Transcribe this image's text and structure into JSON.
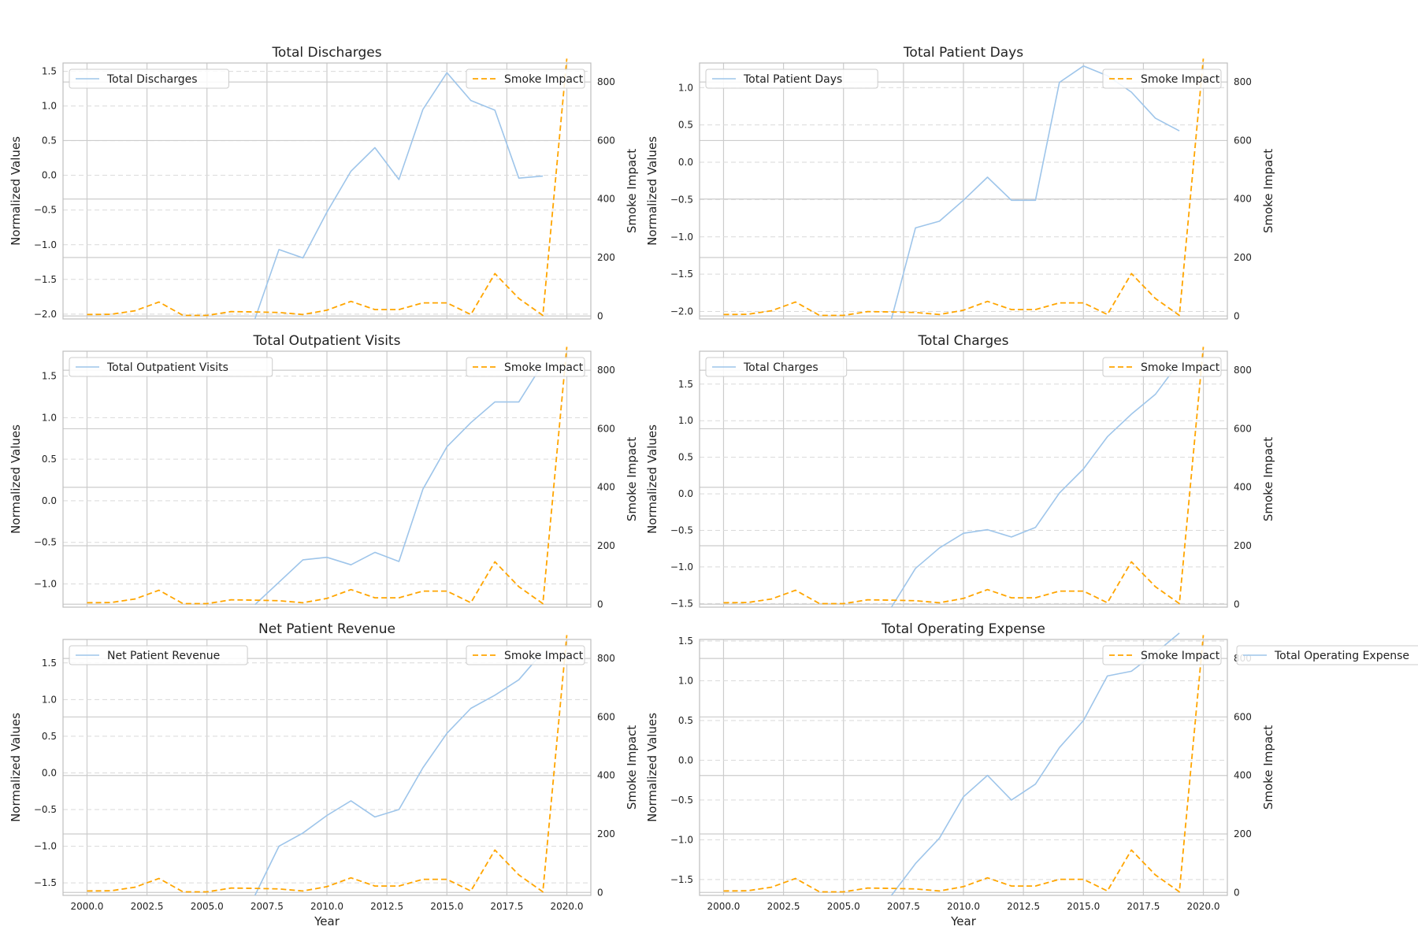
{
  "figure": {
    "xlabel": "Year",
    "left_ylabel": "Normalized Values",
    "right_ylabel": "Smoke Impact"
  },
  "colors": {
    "primary": "#9ec5ea",
    "smoke": "#ffa500",
    "grid": "#cccccc",
    "grid_dash": "#d9d9d9",
    "axis": "#bfbfbf",
    "text": "#222222"
  },
  "chart_data": [
    {
      "type": "line",
      "title": "Total Discharges",
      "xlabel": "",
      "ylabel": "Normalized Values",
      "y2label": "Smoke Impact",
      "xlim": [
        1999,
        2021
      ],
      "ylim": [
        -2.07,
        1.62
      ],
      "y2lim": [
        -10,
        865
      ],
      "xticks": [
        2000,
        2002.5,
        2005,
        2007.5,
        2010,
        2012.5,
        2015,
        2017.5,
        2020
      ],
      "xtick_labels": [
        "2000.0",
        "2002.5",
        "2005.0",
        "2007.5",
        "2010.0",
        "2012.5",
        "2015.0",
        "2017.5",
        "2020.0"
      ],
      "yticks": [
        -2.0,
        -1.5,
        -1.0,
        -0.5,
        0.0,
        0.5,
        1.0,
        1.5
      ],
      "ytick_labels": [
        "−2.0",
        "−1.5",
        "−1.0",
        "−0.5",
        "0.0",
        "0.5",
        "1.0",
        "1.5"
      ],
      "y2ticks": [
        0,
        200,
        400,
        600,
        800
      ],
      "y2tick_labels": [
        "0",
        "200",
        "400",
        "600",
        "800"
      ],
      "legend_main": "upper left",
      "legend_smoke": "upper right",
      "series": [
        {
          "name": "Total Discharges",
          "axis": "left",
          "x": [
            2007,
            2008,
            2009,
            2010,
            2011,
            2012,
            2013,
            2014,
            2015,
            2016,
            2017,
            2018,
            2019
          ],
          "y": [
            -2.07,
            -1.07,
            -1.19,
            -0.53,
            0.06,
            0.4,
            -0.06,
            0.95,
            1.48,
            1.08,
            0.94,
            -0.04,
            -0.01
          ]
        },
        {
          "name": "Smoke Impact",
          "axis": "right",
          "dashed": true,
          "x": [
            2000,
            2001,
            2002,
            2003,
            2004,
            2005,
            2006,
            2007,
            2008,
            2009,
            2010,
            2011,
            2012,
            2013,
            2014,
            2015,
            2016,
            2017,
            2018,
            2019,
            2020
          ],
          "y": [
            5,
            6,
            18,
            48,
            2,
            2,
            15,
            14,
            12,
            5,
            20,
            50,
            22,
            22,
            45,
            45,
            5,
            145,
            60,
            2,
            880
          ]
        }
      ]
    },
    {
      "type": "line",
      "title": "Total Patient Days",
      "xlabel": "",
      "ylabel": "Normalized Values",
      "y2label": "Smoke Impact",
      "xlim": [
        1999,
        2021
      ],
      "ylim": [
        -2.1,
        1.33
      ],
      "y2lim": [
        -10,
        865
      ],
      "xticks": [
        2000,
        2002.5,
        2005,
        2007.5,
        2010,
        2012.5,
        2015,
        2017.5,
        2020
      ],
      "xtick_labels": [
        "2000.0",
        "2002.5",
        "2005.0",
        "2007.5",
        "2010.0",
        "2012.5",
        "2015.0",
        "2017.5",
        "2020.0"
      ],
      "yticks": [
        -2.0,
        -1.5,
        -1.0,
        -0.5,
        0.0,
        0.5,
        1.0
      ],
      "ytick_labels": [
        "−2.0",
        "−1.5",
        "−1.0",
        "−0.5",
        "0.0",
        "0.5",
        "1.0"
      ],
      "y2ticks": [
        0,
        200,
        400,
        600,
        800
      ],
      "y2tick_labels": [
        "0",
        "200",
        "400",
        "600",
        "800"
      ],
      "legend_main": "upper left",
      "legend_smoke": "upper right",
      "series": [
        {
          "name": "Total Patient Days",
          "axis": "left",
          "x": [
            2007,
            2008,
            2009,
            2010,
            2011,
            2012,
            2013,
            2014,
            2015,
            2016,
            2017,
            2018,
            2019
          ],
          "y": [
            -2.1,
            -0.88,
            -0.79,
            -0.51,
            -0.2,
            -0.51,
            -0.51,
            1.07,
            1.29,
            1.16,
            0.94,
            0.59,
            0.42
          ]
        },
        {
          "name": "Smoke Impact",
          "axis": "right",
          "dashed": true,
          "x": [
            2000,
            2001,
            2002,
            2003,
            2004,
            2005,
            2006,
            2007,
            2008,
            2009,
            2010,
            2011,
            2012,
            2013,
            2014,
            2015,
            2016,
            2017,
            2018,
            2019,
            2020
          ],
          "y": [
            5,
            6,
            18,
            48,
            2,
            2,
            15,
            14,
            12,
            5,
            20,
            50,
            22,
            22,
            45,
            45,
            5,
            145,
            60,
            2,
            880
          ]
        }
      ]
    },
    {
      "type": "line",
      "title": "Total Outpatient Visits",
      "xlabel": "",
      "ylabel": "Normalized Values",
      "y2label": "Smoke Impact",
      "xlim": [
        1999,
        2021
      ],
      "ylim": [
        -1.28,
        1.8
      ],
      "y2lim": [
        -10,
        865
      ],
      "xticks": [
        2000,
        2002.5,
        2005,
        2007.5,
        2010,
        2012.5,
        2015,
        2017.5,
        2020
      ],
      "xtick_labels": [
        "2000.0",
        "2002.5",
        "2005.0",
        "2007.5",
        "2010.0",
        "2012.5",
        "2015.0",
        "2017.5",
        "2020.0"
      ],
      "yticks": [
        -1.0,
        -0.5,
        0.0,
        0.5,
        1.0,
        1.5
      ],
      "ytick_labels": [
        "−1.0",
        "−0.5",
        "0.0",
        "0.5",
        "1.0",
        "1.5"
      ],
      "y2ticks": [
        0,
        200,
        400,
        600,
        800
      ],
      "y2tick_labels": [
        "0",
        "200",
        "400",
        "600",
        "800"
      ],
      "legend_main": "upper left",
      "legend_smoke": "upper right",
      "series": [
        {
          "name": "Total Outpatient Visits",
          "axis": "left",
          "x": [
            2007,
            2008,
            2009,
            2010,
            2011,
            2012,
            2013,
            2014,
            2015,
            2016,
            2017,
            2018,
            2019
          ],
          "y": [
            -1.25,
            -0.98,
            -0.71,
            -0.68,
            -0.77,
            -0.62,
            -0.73,
            0.14,
            0.65,
            0.94,
            1.19,
            1.19,
            1.65
          ]
        },
        {
          "name": "Smoke Impact",
          "axis": "right",
          "dashed": true,
          "x": [
            2000,
            2001,
            2002,
            2003,
            2004,
            2005,
            2006,
            2007,
            2008,
            2009,
            2010,
            2011,
            2012,
            2013,
            2014,
            2015,
            2016,
            2017,
            2018,
            2019,
            2020
          ],
          "y": [
            5,
            6,
            18,
            48,
            2,
            2,
            15,
            14,
            12,
            5,
            20,
            50,
            22,
            22,
            45,
            45,
            5,
            145,
            60,
            2,
            880
          ]
        }
      ]
    },
    {
      "type": "line",
      "title": "Total Charges",
      "xlabel": "",
      "ylabel": "Normalized Values",
      "y2label": "Smoke Impact",
      "xlim": [
        1999,
        2021
      ],
      "ylim": [
        -1.55,
        1.95
      ],
      "y2lim": [
        -10,
        865
      ],
      "xticks": [
        2000,
        2002.5,
        2005,
        2007.5,
        2010,
        2012.5,
        2015,
        2017.5,
        2020
      ],
      "xtick_labels": [
        "2000.0",
        "2002.5",
        "2005.0",
        "2007.5",
        "2010.0",
        "2012.5",
        "2015.0",
        "2017.5",
        "2020.0"
      ],
      "yticks": [
        -1.5,
        -1.0,
        -0.5,
        0.0,
        0.5,
        1.0,
        1.5
      ],
      "ytick_labels": [
        "−1.5",
        "−1.0",
        "−0.5",
        "0.0",
        "0.5",
        "1.0",
        "1.5"
      ],
      "y2ticks": [
        0,
        200,
        400,
        600,
        800
      ],
      "y2tick_labels": [
        "0",
        "200",
        "400",
        "600",
        "800"
      ],
      "legend_main": "upper left",
      "legend_smoke": "upper right",
      "series": [
        {
          "name": "Total Charges",
          "axis": "left",
          "x": [
            2007,
            2008,
            2009,
            2010,
            2011,
            2012,
            2013,
            2014,
            2015,
            2016,
            2017,
            2018,
            2019
          ],
          "y": [
            -1.55,
            -1.02,
            -0.74,
            -0.54,
            -0.49,
            -0.59,
            -0.46,
            0.01,
            0.34,
            0.78,
            1.09,
            1.36,
            1.8
          ]
        },
        {
          "name": "Smoke Impact",
          "axis": "right",
          "dashed": true,
          "x": [
            2000,
            2001,
            2002,
            2003,
            2004,
            2005,
            2006,
            2007,
            2008,
            2009,
            2010,
            2011,
            2012,
            2013,
            2014,
            2015,
            2016,
            2017,
            2018,
            2019,
            2020
          ],
          "y": [
            5,
            6,
            18,
            48,
            2,
            2,
            15,
            14,
            12,
            5,
            20,
            50,
            22,
            22,
            45,
            45,
            5,
            145,
            60,
            2,
            880
          ]
        }
      ]
    },
    {
      "type": "line",
      "title": "Net Patient Revenue",
      "xlabel": "Year",
      "ylabel": "Normalized Values",
      "y2label": "Smoke Impact",
      "xlim": [
        1999,
        2021
      ],
      "ylim": [
        -1.67,
        1.82
      ],
      "y2lim": [
        -10,
        865
      ],
      "xticks": [
        2000,
        2002.5,
        2005,
        2007.5,
        2010,
        2012.5,
        2015,
        2017.5,
        2020
      ],
      "xtick_labels": [
        "2000.0",
        "2002.5",
        "2005.0",
        "2007.5",
        "2010.0",
        "2012.5",
        "2015.0",
        "2017.5",
        "2020.0"
      ],
      "yticks": [
        -1.5,
        -1.0,
        -0.5,
        0.0,
        0.5,
        1.0,
        1.5
      ],
      "ytick_labels": [
        "−1.5",
        "−1.0",
        "−0.5",
        "0.0",
        "0.5",
        "1.0",
        "1.5"
      ],
      "y2ticks": [
        0,
        200,
        400,
        600,
        800
      ],
      "y2tick_labels": [
        "0",
        "200",
        "400",
        "600",
        "800"
      ],
      "legend_main": "upper left",
      "legend_smoke": "upper right",
      "series": [
        {
          "name": "Net Patient Revenue",
          "axis": "left",
          "x": [
            2007,
            2008,
            2009,
            2010,
            2011,
            2012,
            2013,
            2014,
            2015,
            2016,
            2017,
            2018,
            2019
          ],
          "y": [
            -1.67,
            -1.0,
            -0.82,
            -0.58,
            -0.38,
            -0.6,
            -0.5,
            0.07,
            0.54,
            0.88,
            1.06,
            1.27,
            1.65
          ]
        },
        {
          "name": "Smoke Impact",
          "axis": "right",
          "dashed": true,
          "x": [
            2000,
            2001,
            2002,
            2003,
            2004,
            2005,
            2006,
            2007,
            2008,
            2009,
            2010,
            2011,
            2012,
            2013,
            2014,
            2015,
            2016,
            2017,
            2018,
            2019,
            2020
          ],
          "y": [
            5,
            6,
            18,
            48,
            2,
            2,
            15,
            14,
            12,
            5,
            20,
            50,
            22,
            22,
            45,
            45,
            5,
            145,
            60,
            2,
            880
          ]
        }
      ]
    },
    {
      "type": "line",
      "title": "Total Operating Expense",
      "xlabel": "Year",
      "ylabel": "Normalized Values",
      "y2label": "Smoke Impact",
      "xlim": [
        1999,
        2021
      ],
      "ylim": [
        -1.7,
        1.52
      ],
      "y2lim": [
        -10,
        865
      ],
      "xticks": [
        2000,
        2002.5,
        2005,
        2007.5,
        2010,
        2012.5,
        2015,
        2017.5,
        2020
      ],
      "xtick_labels": [
        "2000.0",
        "2002.5",
        "2005.0",
        "2007.5",
        "2010.0",
        "2012.5",
        "2015.0",
        "2017.5",
        "2020.0"
      ],
      "yticks": [
        -1.5,
        -1.0,
        -0.5,
        0.0,
        0.5,
        1.0,
        1.5
      ],
      "ytick_labels": [
        "−1.5",
        "−1.0",
        "−0.5",
        "0.0",
        "0.5",
        "1.0",
        "1.5"
      ],
      "y2ticks": [
        0,
        200,
        400,
        600,
        800
      ],
      "y2tick_labels": [
        "0",
        "200",
        "400",
        "600",
        "800"
      ],
      "legend_main": "outside right",
      "legend_smoke": "upper right",
      "series": [
        {
          "name": "Total Operating Expense",
          "axis": "left",
          "x": [
            2007,
            2008,
            2009,
            2010,
            2011,
            2012,
            2013,
            2014,
            2015,
            2016,
            2017,
            2018,
            2019
          ],
          "y": [
            -1.7,
            -1.3,
            -0.98,
            -0.46,
            -0.19,
            -0.5,
            -0.3,
            0.16,
            0.5,
            1.06,
            1.12,
            1.35,
            1.6
          ]
        },
        {
          "name": "Smoke Impact",
          "axis": "right",
          "dashed": true,
          "x": [
            2000,
            2001,
            2002,
            2003,
            2004,
            2005,
            2006,
            2007,
            2008,
            2009,
            2010,
            2011,
            2012,
            2013,
            2014,
            2015,
            2016,
            2017,
            2018,
            2019,
            2020
          ],
          "y": [
            5,
            6,
            18,
            48,
            2,
            2,
            15,
            14,
            12,
            5,
            20,
            50,
            22,
            22,
            45,
            45,
            5,
            145,
            60,
            2,
            880
          ]
        }
      ]
    }
  ]
}
